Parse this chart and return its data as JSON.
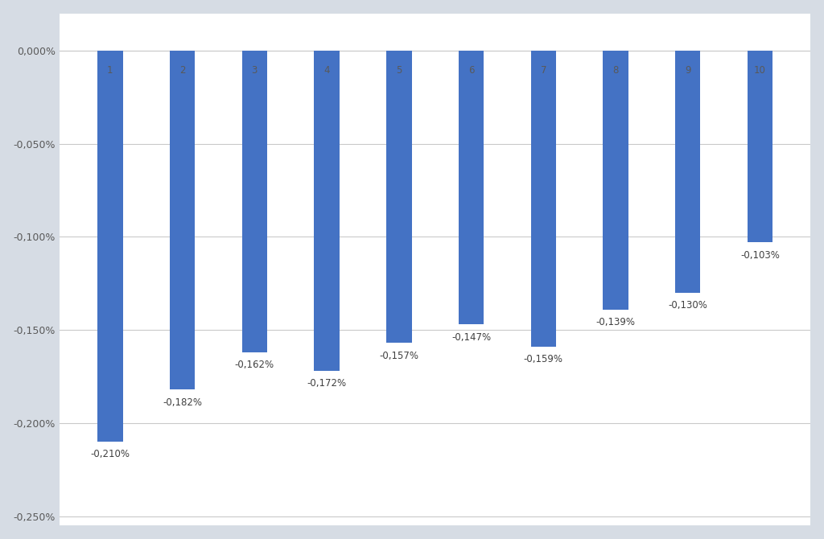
{
  "categories": [
    "1",
    "2",
    "3",
    "4",
    "5",
    "6",
    "7",
    "8",
    "9",
    "10"
  ],
  "values": [
    -0.0021,
    -0.00182,
    -0.00162,
    -0.00172,
    -0.00157,
    -0.00147,
    -0.00159,
    -0.00139,
    -0.0013,
    -0.00103
  ],
  "bar_color": "#4472C4",
  "bar_labels": [
    "-0,210%",
    "-0,182%",
    "-0,162%",
    "-0,172%",
    "-0,157%",
    "-0,147%",
    "-0,159%",
    "-0,139%",
    "-0,130%",
    "-0,103%"
  ],
  "ylim": [
    -0.00255,
    0.0002
  ],
  "yticks": [
    0.0,
    -0.0005,
    -0.001,
    -0.0015,
    -0.002,
    -0.0025
  ],
  "ytick_labels": [
    "0,000%",
    "-0,050%",
    "-0,100%",
    "-0,150%",
    "-0,200%",
    "-0,250%"
  ],
  "plot_bg_color": "#FFFFFF",
  "fig_bg_color": "#D6DCE4",
  "grid_color": "#C9C9C9",
  "label_fontsize": 8.5,
  "tick_fontsize": 9,
  "decile_label_color": "#595959",
  "bar_width": 0.35
}
